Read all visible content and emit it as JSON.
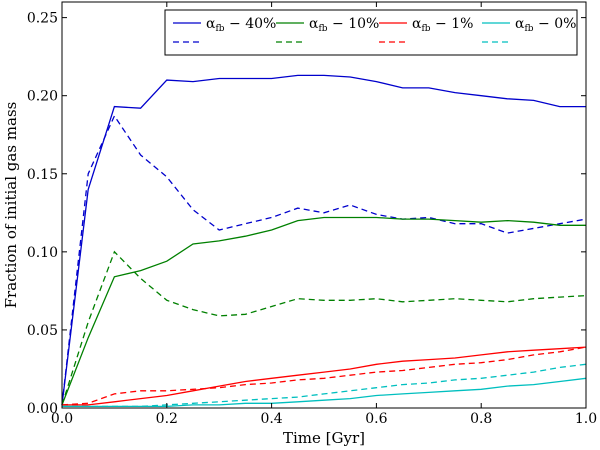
{
  "chart_data": {
    "type": "line",
    "title": "",
    "xlabel": "Time [Gyr]",
    "ylabel": "Fraction of initial gas mass",
    "xlim": [
      0.0,
      1.0
    ],
    "ylim": [
      0.0,
      0.26
    ],
    "xticks": [
      0.0,
      0.2,
      0.4,
      0.6,
      0.8,
      1.0
    ],
    "xtick_labels": [
      "0.0",
      "0.2",
      "0.4",
      "0.6",
      "0.8",
      "1.0"
    ],
    "yticks": [
      0.0,
      0.05,
      0.1,
      0.15,
      0.2,
      0.25
    ],
    "ytick_labels": [
      "0.00",
      "0.05",
      "0.10",
      "0.15",
      "0.20",
      "0.25"
    ],
    "grid": false,
    "legend_position": "top-right",
    "series": [
      {
        "name": "α_fb − 40% (solid)",
        "legend_main": "α",
        "legend_sub": "fb",
        "legend_rest": " − 40%",
        "color": "#0000cc",
        "style": "solid",
        "x": [
          0.0,
          0.05,
          0.1,
          0.15,
          0.2,
          0.25,
          0.3,
          0.35,
          0.4,
          0.45,
          0.5,
          0.55,
          0.6,
          0.65,
          0.7,
          0.75,
          0.8,
          0.85,
          0.9,
          0.95,
          1.0
        ],
        "y": [
          0.002,
          0.14,
          0.193,
          0.192,
          0.21,
          0.209,
          0.211,
          0.211,
          0.211,
          0.213,
          0.213,
          0.212,
          0.209,
          0.205,
          0.205,
          0.202,
          0.2,
          0.198,
          0.197,
          0.193,
          0.193
        ]
      },
      {
        "name": "α_fb − 40% (dashed)",
        "color": "#0000cc",
        "style": "dashed",
        "x": [
          0.0,
          0.05,
          0.1,
          0.15,
          0.2,
          0.25,
          0.3,
          0.35,
          0.4,
          0.45,
          0.5,
          0.55,
          0.6,
          0.65,
          0.7,
          0.75,
          0.8,
          0.85,
          0.9,
          0.95,
          1.0
        ],
        "y": [
          0.002,
          0.15,
          0.187,
          0.162,
          0.148,
          0.127,
          0.114,
          0.118,
          0.122,
          0.128,
          0.125,
          0.13,
          0.124,
          0.121,
          0.122,
          0.118,
          0.118,
          0.112,
          0.115,
          0.118,
          0.121
        ]
      },
      {
        "name": "α_fb − 10% (solid)",
        "legend_main": "α",
        "legend_sub": "fb",
        "legend_rest": " − 10%",
        "color": "#008000",
        "style": "solid",
        "x": [
          0.0,
          0.05,
          0.1,
          0.15,
          0.2,
          0.25,
          0.3,
          0.35,
          0.4,
          0.45,
          0.5,
          0.55,
          0.6,
          0.65,
          0.7,
          0.75,
          0.8,
          0.85,
          0.9,
          0.95,
          1.0
        ],
        "y": [
          0.002,
          0.045,
          0.084,
          0.088,
          0.094,
          0.105,
          0.107,
          0.11,
          0.114,
          0.12,
          0.122,
          0.122,
          0.122,
          0.121,
          0.121,
          0.12,
          0.119,
          0.12,
          0.119,
          0.117,
          0.117
        ]
      },
      {
        "name": "α_fb − 10% (dashed)",
        "color": "#008000",
        "style": "dashed",
        "x": [
          0.0,
          0.05,
          0.1,
          0.15,
          0.2,
          0.25,
          0.3,
          0.35,
          0.4,
          0.45,
          0.5,
          0.55,
          0.6,
          0.65,
          0.7,
          0.75,
          0.8,
          0.85,
          0.9,
          0.95,
          1.0
        ],
        "y": [
          0.002,
          0.055,
          0.1,
          0.083,
          0.069,
          0.063,
          0.059,
          0.06,
          0.065,
          0.07,
          0.069,
          0.069,
          0.07,
          0.068,
          0.069,
          0.07,
          0.069,
          0.068,
          0.07,
          0.071,
          0.072
        ]
      },
      {
        "name": "α_fb − 1% (solid)",
        "legend_main": "α",
        "legend_sub": "fb",
        "legend_rest": " − 1%",
        "color": "#ff0000",
        "style": "solid",
        "x": [
          0.0,
          0.05,
          0.1,
          0.15,
          0.2,
          0.25,
          0.3,
          0.35,
          0.4,
          0.45,
          0.5,
          0.55,
          0.6,
          0.65,
          0.7,
          0.75,
          0.8,
          0.85,
          0.9,
          0.95,
          1.0
        ],
        "y": [
          0.002,
          0.002,
          0.004,
          0.006,
          0.008,
          0.011,
          0.014,
          0.017,
          0.019,
          0.021,
          0.023,
          0.025,
          0.028,
          0.03,
          0.031,
          0.032,
          0.034,
          0.036,
          0.037,
          0.038,
          0.039
        ]
      },
      {
        "name": "α_fb − 1% (dashed)",
        "color": "#ff0000",
        "style": "dashed",
        "x": [
          0.0,
          0.05,
          0.1,
          0.15,
          0.2,
          0.25,
          0.3,
          0.35,
          0.4,
          0.45,
          0.5,
          0.55,
          0.6,
          0.65,
          0.7,
          0.75,
          0.8,
          0.85,
          0.9,
          0.95,
          1.0
        ],
        "y": [
          0.002,
          0.003,
          0.009,
          0.011,
          0.011,
          0.012,
          0.013,
          0.015,
          0.016,
          0.018,
          0.019,
          0.021,
          0.023,
          0.024,
          0.026,
          0.028,
          0.029,
          0.031,
          0.034,
          0.036,
          0.039
        ]
      },
      {
        "name": "α_fb − 0% (solid)",
        "legend_main": "α",
        "legend_sub": "fb",
        "legend_rest": " − 0%",
        "color": "#00bfbf",
        "style": "solid",
        "x": [
          0.0,
          0.05,
          0.1,
          0.15,
          0.2,
          0.25,
          0.3,
          0.35,
          0.4,
          0.45,
          0.5,
          0.55,
          0.6,
          0.65,
          0.7,
          0.75,
          0.8,
          0.85,
          0.9,
          0.95,
          1.0
        ],
        "y": [
          0.001,
          0.001,
          0.001,
          0.001,
          0.001,
          0.002,
          0.002,
          0.003,
          0.003,
          0.004,
          0.005,
          0.006,
          0.008,
          0.009,
          0.01,
          0.011,
          0.012,
          0.014,
          0.015,
          0.017,
          0.019
        ]
      },
      {
        "name": "α_fb − 0% (dashed)",
        "color": "#00bfbf",
        "style": "dashed",
        "x": [
          0.0,
          0.05,
          0.1,
          0.15,
          0.2,
          0.25,
          0.3,
          0.35,
          0.4,
          0.45,
          0.5,
          0.55,
          0.6,
          0.65,
          0.7,
          0.75,
          0.8,
          0.85,
          0.9,
          0.95,
          1.0
        ],
        "y": [
          0.001,
          0.001,
          0.001,
          0.001,
          0.002,
          0.003,
          0.004,
          0.005,
          0.006,
          0.007,
          0.009,
          0.011,
          0.013,
          0.015,
          0.016,
          0.018,
          0.019,
          0.021,
          0.023,
          0.026,
          0.028
        ]
      }
    ]
  }
}
